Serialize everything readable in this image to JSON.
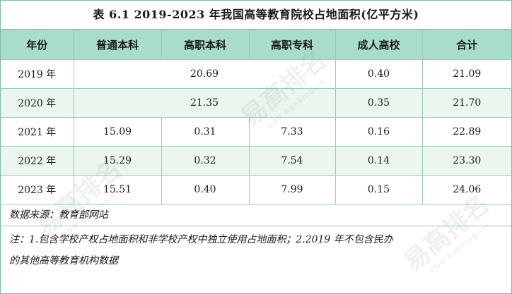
{
  "title": "表 6.1 2019-2023 年我国高等教育院校占地面积(亿平方米)",
  "headers": [
    "年份",
    "普通本科",
    "高职本科",
    "高职专科",
    "成人高校",
    "合计"
  ],
  "rows": [
    {
      "year": "2019 年",
      "merged": "20.69",
      "adult": "0.40",
      "total": "21.09"
    },
    {
      "year": "2020 年",
      "merged": "21.35",
      "adult": "0.35",
      "total": "21.70"
    },
    {
      "year": "2021 年",
      "undergrad": "15.09",
      "voc_bachelor": "0.31",
      "voc_college": "7.33",
      "adult": "0.16",
      "total": "22.89"
    },
    {
      "year": "2022 年",
      "undergrad": "15.29",
      "voc_bachelor": "0.32",
      "voc_college": "7.54",
      "adult": "0.14",
      "total": "23.30"
    },
    {
      "year": "2023 年",
      "undergrad": "15.51",
      "voc_bachelor": "0.40",
      "voc_college": "7.99",
      "adult": "0.15",
      "total": "24.06"
    }
  ],
  "source": "数据来源：教育部网站",
  "note_line1": "注：1.包含学校产权占地面积和非学校产权中独立使用占地面积；2.2019 年不包含民办",
  "note_line2": "的其他高等教育机构数据",
  "watermark": {
    "text": "易高排名",
    "subtext": "EDU Ranking.cn"
  }
}
